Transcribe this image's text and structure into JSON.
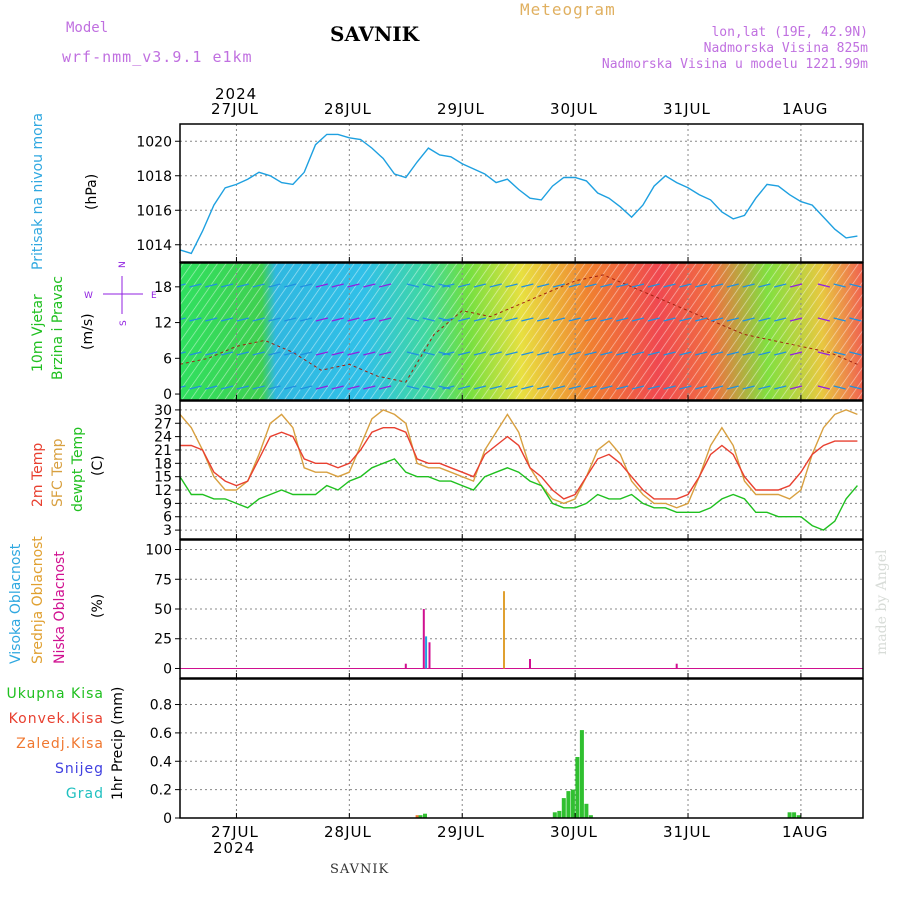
{
  "header": {
    "model_label": "Model",
    "model_name": "wrf-nmm_v3.9.1 e1km",
    "station": "SAVNIK",
    "product": "Meteogram",
    "lonlat": "lon,lat (19E, 42.9N)",
    "altitude": "Nadmorska Visina 825m",
    "model_altitude": "Nadmorska Visina u modelu 1221.99m"
  },
  "x_axis": {
    "year": "2024",
    "days": [
      "27JUL",
      "28JUL",
      "29JUL",
      "30JUL",
      "31JUL",
      "1AUG"
    ],
    "bottom_station": "SAVNIK"
  },
  "watermark": "made by Angel",
  "colors": {
    "pressure": "#1ea0e0",
    "temp2m": "#e84030",
    "sfc": "#d8a040",
    "dewpt": "#20c020",
    "cloud_high": "#20a0e0",
    "cloud_mid": "#e0a030",
    "cloud_low": "#d01090",
    "rain_total": "#30c030",
    "rain_conv": "#e83030",
    "rain_frozen": "#f07830",
    "snow": "#4040e0",
    "hail": "#20c0c0",
    "wind_dir": "#9020e0"
  },
  "chart_data": [
    {
      "type": "line",
      "panel": "pressure",
      "ylabel_main": "Pritisak na nivou mora",
      "unit": "(hPa)",
      "ylim": [
        1013,
        1021
      ],
      "yticks": [
        1014,
        1016,
        1018,
        1020
      ],
      "x": [
        26.5,
        26.6,
        26.7,
        26.8,
        26.9,
        27.0,
        27.1,
        27.2,
        27.3,
        27.4,
        27.5,
        27.6,
        27.7,
        27.8,
        27.9,
        28.0,
        28.1,
        28.2,
        28.3,
        28.4,
        28.5,
        28.6,
        28.7,
        28.8,
        28.9,
        29.0,
        29.1,
        29.2,
        29.3,
        29.4,
        29.5,
        29.6,
        29.7,
        29.8,
        29.9,
        30.0,
        30.1,
        30.2,
        30.3,
        30.4,
        30.5,
        30.6,
        30.7,
        30.8,
        30.9,
        31.0,
        31.1,
        31.2,
        31.3,
        31.4,
        31.5,
        31.6,
        31.7,
        31.8,
        31.9,
        32.0,
        32.1,
        32.2,
        32.3,
        32.4,
        32.5
      ],
      "series": [
        {
          "values": [
            1013.7,
            1013.5,
            1014.8,
            1016.3,
            1017.3,
            1017.5,
            1017.8,
            1018.2,
            1018.0,
            1017.6,
            1017.5,
            1018.2,
            1019.8,
            1020.4,
            1020.4,
            1020.2,
            1020.1,
            1019.6,
            1019.0,
            1018.1,
            1017.9,
            1018.8,
            1019.6,
            1019.2,
            1019.1,
            1018.7,
            1018.4,
            1018.1,
            1017.6,
            1017.8,
            1017.2,
            1016.7,
            1016.6,
            1017.4,
            1017.9,
            1017.9,
            1017.7,
            1017.0,
            1016.7,
            1016.2,
            1015.6,
            1016.3,
            1017.4,
            1018.0,
            1017.6,
            1017.3,
            1016.9,
            1016.6,
            1015.9,
            1015.5,
            1015.7,
            1016.7,
            1017.5,
            1017.4,
            1016.9,
            1016.5,
            1016.3,
            1015.6,
            1014.9,
            1014.4,
            1014.5
          ]
        }
      ]
    },
    {
      "type": "scatter",
      "panel": "wind",
      "ylabel_main": "10m Vjetar",
      "ylabel_sub": "Brzina i Pravac",
      "unit": "(m/s)",
      "compass": {
        "north": "N",
        "south": "S",
        "east": "E",
        "west": "W"
      },
      "ylim": [
        -1,
        22
      ],
      "yticks": [
        0,
        6,
        12,
        18
      ],
      "x": [
        26.5,
        26.75,
        27.0,
        27.25,
        27.5,
        27.75,
        28.0,
        28.25,
        28.5,
        28.75,
        29.0,
        29.25,
        29.5,
        29.75,
        30.0,
        30.25,
        30.5,
        30.75,
        31.0,
        31.25,
        31.5,
        31.75,
        32.0,
        32.25,
        32.5
      ],
      "series": [
        {
          "name": "speed",
          "values": [
            5,
            6,
            8,
            9,
            7,
            4,
            5,
            3,
            2,
            10,
            14,
            13,
            15,
            17,
            19,
            20,
            18,
            16,
            14,
            12,
            10,
            9,
            8,
            7,
            5
          ]
        }
      ]
    },
    {
      "type": "line",
      "panel": "temperature",
      "labels": [
        "2m Temp",
        "SFC Temp",
        "dewpt Temp"
      ],
      "unit": "(C)",
      "ylim": [
        1,
        32
      ],
      "yticks": [
        3,
        6,
        9,
        12,
        15,
        18,
        21,
        24,
        27,
        30
      ],
      "x": [
        26.5,
        26.6,
        26.7,
        26.8,
        26.9,
        27.0,
        27.1,
        27.2,
        27.3,
        27.4,
        27.5,
        27.6,
        27.7,
        27.8,
        27.9,
        28.0,
        28.1,
        28.2,
        28.3,
        28.4,
        28.5,
        28.6,
        28.7,
        28.8,
        28.9,
        29.0,
        29.1,
        29.2,
        29.3,
        29.4,
        29.5,
        29.6,
        29.7,
        29.8,
        29.9,
        30.0,
        30.1,
        30.2,
        30.3,
        30.4,
        30.5,
        30.6,
        30.7,
        30.8,
        30.9,
        31.0,
        31.1,
        31.2,
        31.3,
        31.4,
        31.5,
        31.6,
        31.7,
        31.8,
        31.9,
        32.0,
        32.1,
        32.2,
        32.3,
        32.4,
        32.5
      ],
      "series": [
        {
          "name": "2m Temp",
          "values": [
            22,
            22,
            21,
            16,
            14,
            13,
            14,
            19,
            24,
            25,
            24,
            19,
            18,
            18,
            17,
            18,
            21,
            25,
            26,
            26,
            25,
            19,
            18,
            18,
            17,
            16,
            15,
            20,
            22,
            24,
            22,
            17,
            15,
            12,
            10,
            11,
            15,
            19,
            20,
            18,
            15,
            12,
            10,
            10,
            10,
            11,
            15,
            20,
            22,
            20,
            15,
            12,
            12,
            12,
            13,
            16,
            20,
            22,
            23,
            23,
            23
          ]
        },
        {
          "name": "SFC Temp",
          "values": [
            29,
            26,
            21,
            15,
            12,
            12,
            14,
            20,
            27,
            29,
            26,
            17,
            16,
            16,
            15,
            16,
            22,
            28,
            30,
            29,
            27,
            18,
            17,
            17,
            16,
            15,
            14,
            21,
            25,
            29,
            25,
            17,
            13,
            10,
            9,
            10,
            15,
            21,
            23,
            20,
            14,
            11,
            9,
            9,
            8,
            9,
            15,
            22,
            26,
            22,
            14,
            11,
            11,
            11,
            10,
            12,
            20,
            26,
            29,
            30,
            29
          ]
        },
        {
          "name": "dewpt Temp",
          "values": [
            15,
            11,
            11,
            10,
            10,
            9,
            8,
            10,
            11,
            12,
            11,
            11,
            11,
            13,
            12,
            14,
            15,
            17,
            18,
            19,
            16,
            15,
            15,
            14,
            14,
            13,
            12,
            15,
            16,
            17,
            16,
            14,
            13,
            9,
            8,
            8,
            9,
            11,
            10,
            10,
            11,
            9,
            8,
            8,
            7,
            7,
            7,
            8,
            10,
            11,
            10,
            7,
            7,
            6,
            6,
            6,
            4,
            3,
            5,
            10,
            13
          ]
        }
      ]
    },
    {
      "type": "bar",
      "panel": "cloudiness",
      "labels": [
        "Visoka Oblacnost",
        "Srednja Oblacnost",
        "Niska Oblacnost"
      ],
      "unit": "(%)",
      "ylim": [
        -8,
        108
      ],
      "yticks": [
        0,
        25,
        50,
        75,
        100
      ],
      "series": [
        {
          "name": "Niska Oblacnost",
          "x": [
            28.5,
            28.66,
            28.71,
            29.6,
            30.9
          ],
          "values": [
            4,
            50,
            22,
            8,
            4
          ]
        },
        {
          "name": "Srednja Oblacnost",
          "x": [
            29.37
          ],
          "values": [
            65
          ]
        },
        {
          "name": "Visoka Oblacnost",
          "x": [
            28.68
          ],
          "values": [
            27
          ]
        }
      ]
    },
    {
      "type": "bar",
      "panel": "precipitation",
      "labels": [
        "Ukupna Kisa",
        "Konvek.Kisa",
        "Zaledj.Kisa",
        "Snijeg",
        "Grad"
      ],
      "unit": "1hr Precip (mm)",
      "ylim": [
        0,
        0.98
      ],
      "yticks": [
        0,
        0.2,
        0.4,
        0.6,
        0.8
      ],
      "series": [
        {
          "name": "Ukupna Kisa",
          "x": [
            28.63,
            28.67,
            29.82,
            29.86,
            29.9,
            29.94,
            29.98,
            30.02,
            30.06,
            30.1,
            30.14,
            31.9,
            31.94,
            31.98
          ],
          "values": [
            0.02,
            0.03,
            0.04,
            0.05,
            0.14,
            0.19,
            0.2,
            0.43,
            0.62,
            0.1,
            0.02,
            0.04,
            0.04,
            0.02
          ]
        },
        {
          "name": "Zaledj.Kisa",
          "x": [
            28.6
          ],
          "values": [
            0.02
          ]
        }
      ]
    }
  ]
}
